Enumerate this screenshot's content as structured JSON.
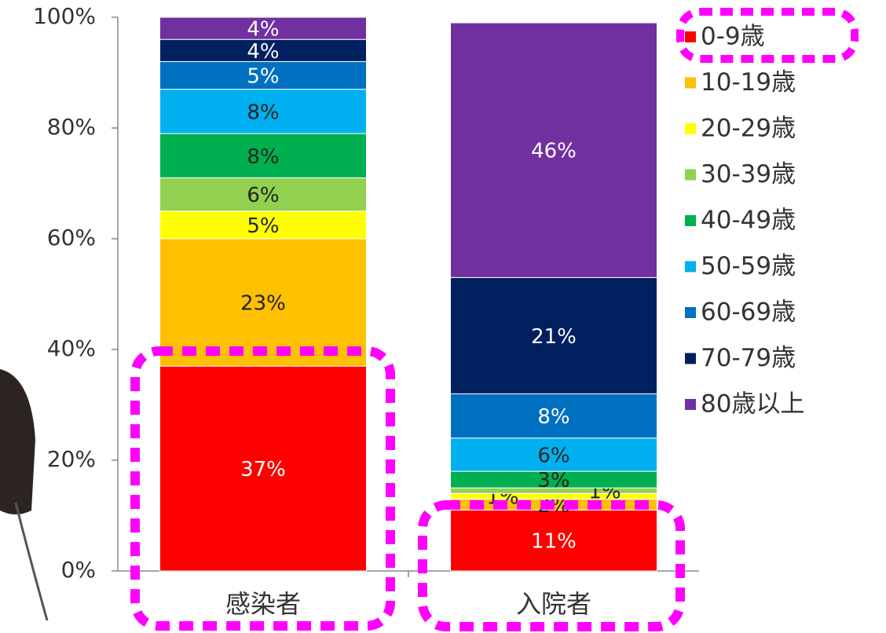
{
  "chart_data": {
    "type": "stacked_bar",
    "categories": [
      "感染者",
      "入院者"
    ],
    "series": [
      {
        "name": "0-9歳",
        "color": "#ff0000",
        "values": [
          37,
          11
        ],
        "value_labels": [
          "37%",
          "11%"
        ]
      },
      {
        "name": "10-19歳",
        "color": "#ffc000",
        "values": [
          23,
          2
        ],
        "value_labels": [
          "23%",
          "2%"
        ]
      },
      {
        "name": "20-29歳",
        "color": "#ffff00",
        "values": [
          5,
          1
        ],
        "value_labels": [
          "5%",
          "1%"
        ]
      },
      {
        "name": "30-39歳",
        "color": "#92d050",
        "values": [
          6,
          1
        ],
        "value_labels": [
          "6%",
          "1%"
        ]
      },
      {
        "name": "40-49歳",
        "color": "#00b050",
        "values": [
          8,
          3
        ],
        "value_labels": [
          "8%",
          "3%"
        ]
      },
      {
        "name": "50-59歳",
        "color": "#00b0f0",
        "values": [
          8,
          6
        ],
        "value_labels": [
          "8%",
          "6%"
        ]
      },
      {
        "name": "60-69歳",
        "color": "#0070c0",
        "values": [
          5,
          8
        ],
        "value_labels": [
          "5%",
          "8%"
        ]
      },
      {
        "name": "70-79歳",
        "color": "#002060",
        "values": [
          4,
          21
        ],
        "value_labels": [
          "4%",
          "21%"
        ]
      },
      {
        "name": "80歳以上",
        "color": "#7030a0",
        "values": [
          4,
          46
        ],
        "value_labels": [
          "4%",
          "46%"
        ]
      }
    ],
    "ylim": [
      0,
      100
    ],
    "yticks": [
      {
        "value": 0,
        "label": "0%"
      },
      {
        "value": 20,
        "label": "20%"
      },
      {
        "value": 40,
        "label": "40%"
      },
      {
        "value": 60,
        "label": "60%"
      },
      {
        "value": 80,
        "label": "80%"
      },
      {
        "value": 100,
        "label": "100%"
      }
    ],
    "legend": "right"
  }
}
